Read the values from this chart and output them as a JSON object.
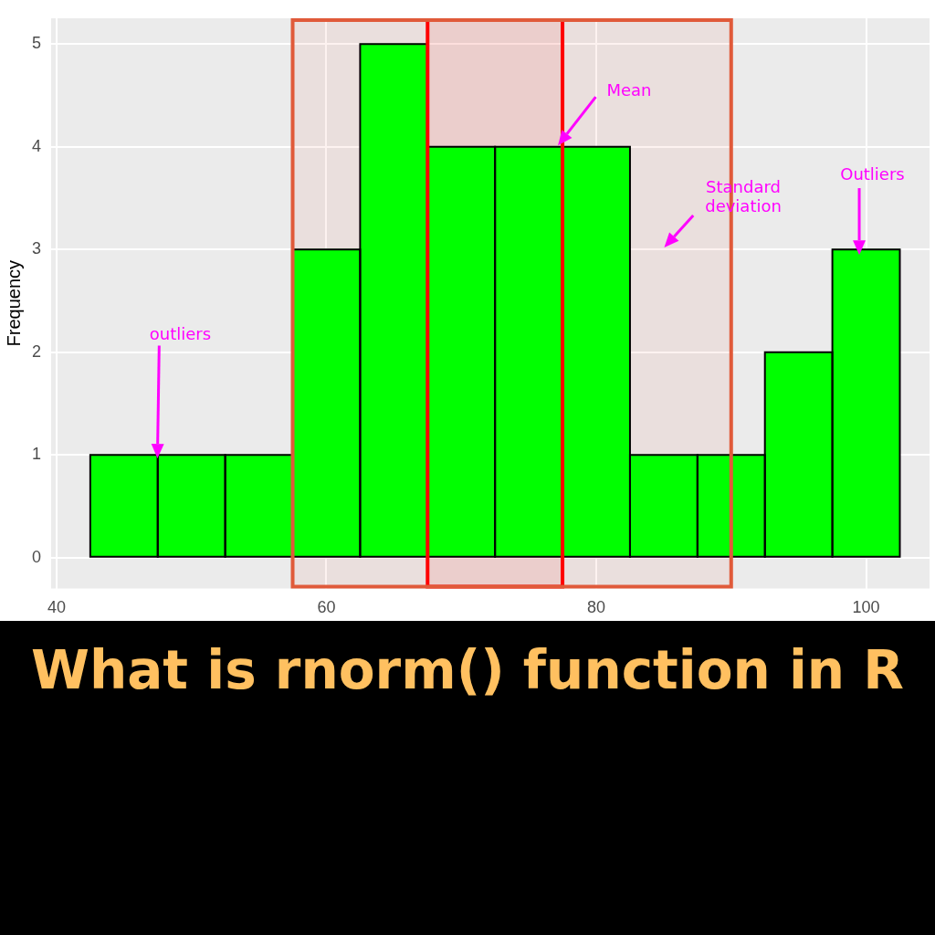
{
  "chart_data": {
    "type": "histogram",
    "title": "What is rnorm() function in R",
    "ylabel": "Frequency",
    "bins": [
      42.5,
      47.5,
      52.5,
      57.5,
      62.5,
      67.5,
      72.5,
      77.5,
      82.5,
      87.5,
      92.5,
      97.5,
      102.5
    ],
    "values": [
      1,
      1,
      1,
      3,
      5,
      4,
      4,
      4,
      1,
      1,
      2,
      3
    ],
    "color": "#00ff00",
    "xlim": [
      39.6,
      104.7
    ],
    "xticks": [
      40,
      60,
      80,
      100
    ],
    "ylim": [
      -0.3,
      5.25
    ],
    "yticks": [
      0,
      1,
      2,
      3,
      4,
      5
    ],
    "grid": true,
    "bands": [
      {
        "axis": "x",
        "from": 67.5,
        "to": 77.5,
        "color": "#ff0000"
      },
      {
        "axis": "x",
        "from": 57.5,
        "to": 90,
        "color": "#e05a3a"
      }
    ],
    "annotations": [
      "outliers",
      "Mean",
      "Standard deviation",
      "Outliers"
    ]
  }
}
